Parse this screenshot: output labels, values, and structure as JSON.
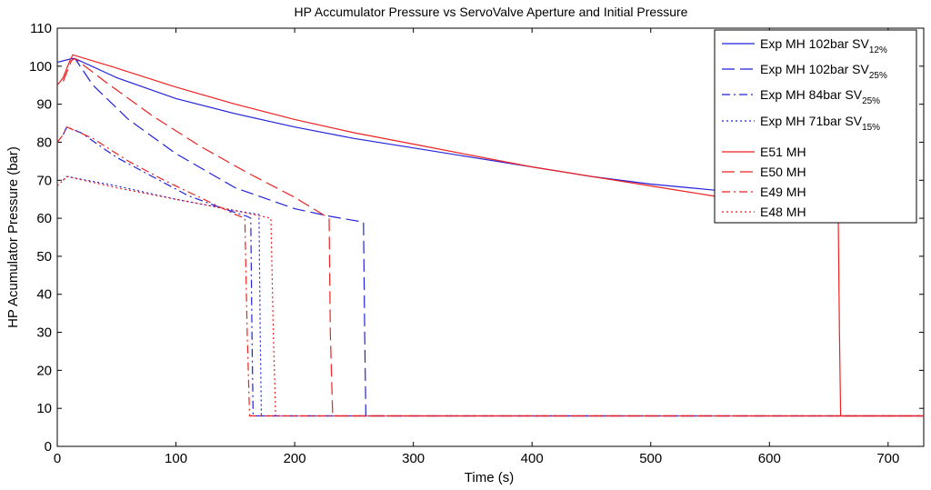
{
  "chart_data": {
    "type": "line",
    "title": "HP Accumulator Pressure vs ServoValve Aperture and Initial Pressure",
    "xlabel": "Time (s)",
    "ylabel": "HP Acumulator Pressure (bar)",
    "xlim": [
      0,
      730
    ],
    "ylim": [
      0,
      110
    ],
    "xticks": [
      0,
      100,
      200,
      300,
      400,
      500,
      600,
      700
    ],
    "yticks": [
      0,
      10,
      20,
      30,
      40,
      50,
      60,
      70,
      80,
      90,
      100,
      110
    ],
    "grid": false,
    "legend_position": "top-right",
    "series": [
      {
        "name": "Exp MH 102bar SV",
        "name_sub": "12%",
        "color": "#2222dd",
        "dash": "solid",
        "x": [
          0,
          12,
          15,
          50,
          100,
          150,
          200,
          250,
          300,
          350,
          400,
          450,
          500,
          550,
          600,
          650,
          660
        ],
        "y": [
          101,
          102,
          102,
          97,
          91.5,
          87.5,
          84,
          81,
          78.5,
          76,
          73.5,
          71,
          69,
          67.5,
          66,
          64,
          64
        ]
      },
      {
        "name": "Exp MH 102bar SV",
        "name_sub": "25%",
        "color": "#2222dd",
        "dash": "long-dash",
        "x": [
          12,
          15,
          30,
          60,
          100,
          150,
          200,
          230,
          258,
          259,
          260,
          300,
          400,
          500,
          600,
          700,
          730
        ],
        "y": [
          102,
          102,
          95,
          86,
          77,
          68,
          62.5,
          60.5,
          59,
          30,
          8,
          8,
          8,
          8,
          8,
          8,
          8
        ]
      },
      {
        "name": "Exp MH 84bar SV",
        "name_sub": "25%",
        "color": "#2222dd",
        "dash": "dash-dot",
        "x": [
          5,
          8,
          20,
          50,
          80,
          110,
          140,
          160,
          163,
          164,
          165,
          200,
          300,
          400,
          500,
          600,
          700,
          730
        ],
        "y": [
          82,
          84,
          82.5,
          76,
          71,
          66,
          62.5,
          60.5,
          60,
          30,
          8,
          8,
          8,
          8,
          8,
          8,
          8,
          8
        ]
      },
      {
        "name": "Exp MH 71bar SV",
        "name_sub": "15%",
        "color": "#2222dd",
        "dash": "dotted",
        "x": [
          5,
          8,
          50,
          100,
          150,
          170,
          171,
          172,
          200,
          300,
          400,
          500,
          600,
          700,
          730
        ],
        "y": [
          70,
          71,
          68.5,
          65,
          62,
          61,
          30,
          8,
          8,
          8,
          8,
          8,
          8,
          8,
          8
        ]
      },
      {
        "name": "E51 MH",
        "color": "#ee2222",
        "dash": "solid",
        "x": [
          0,
          5,
          10,
          13,
          50,
          100,
          150,
          200,
          250,
          300,
          350,
          400,
          450,
          500,
          550,
          600,
          640,
          658,
          659,
          660,
          700,
          730
        ],
        "y": [
          95,
          97,
          101,
          103,
          99.5,
          94.5,
          90,
          86,
          82.5,
          79.5,
          76.5,
          73.5,
          71,
          68.5,
          66,
          63.5,
          61.5,
          60,
          30,
          8,
          8,
          8
        ]
      },
      {
        "name": "E50 MH",
        "color": "#ee2222",
        "dash": "long-dash",
        "x": [
          5,
          12,
          15,
          40,
          80,
          120,
          160,
          200,
          229,
          230,
          232,
          260,
          300,
          400,
          500,
          600,
          700,
          730
        ],
        "y": [
          96,
          101.5,
          102,
          96,
          87,
          79,
          72,
          65.5,
          60,
          30,
          8,
          8,
          8,
          8,
          8,
          8,
          8,
          8
        ]
      },
      {
        "name": "E49 MH",
        "color": "#ee2222",
        "dash": "dash-dot",
        "x": [
          0,
          5,
          8,
          30,
          60,
          90,
          120,
          150,
          158,
          160,
          162,
          200,
          300,
          400,
          500,
          600,
          700,
          730
        ],
        "y": [
          80,
          82,
          84,
          81,
          75,
          70,
          65.5,
          61,
          60,
          30,
          8,
          8,
          8,
          8,
          8,
          8,
          8,
          8
        ]
      },
      {
        "name": "E48 MH",
        "color": "#ee2222",
        "dash": "dotted",
        "x": [
          0,
          5,
          8,
          50,
          100,
          150,
          180,
          182,
          184,
          200,
          300,
          400,
          500,
          600,
          700,
          730
        ],
        "y": [
          68.5,
          70,
          71,
          68,
          65,
          62,
          60,
          30,
          8,
          8,
          8,
          8,
          8,
          8,
          8,
          8
        ]
      }
    ]
  }
}
